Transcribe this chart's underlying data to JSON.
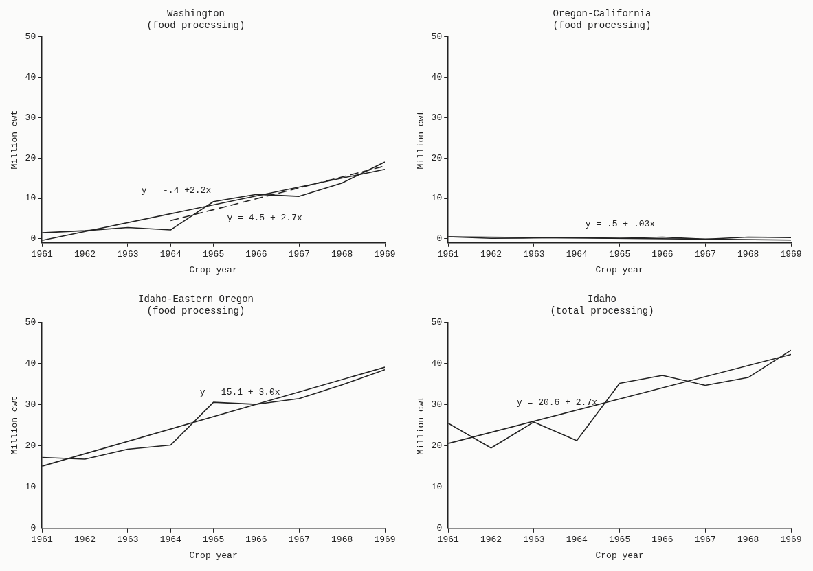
{
  "chart_data": [
    {
      "type": "line",
      "title": "Washington",
      "subtitle": "(food processing)",
      "xlabel": "Crop year",
      "ylabel": "Million cwt",
      "x": [
        1961,
        1962,
        1963,
        1964,
        1965,
        1966,
        1967,
        1968,
        1969
      ],
      "series": [
        {
          "color": "#222222",
          "values": [
            1.5,
            2,
            2.8,
            2.2,
            9.2,
            11,
            10.5,
            13.8,
            19
          ]
        },
        {
          "color": "#222222",
          "x": [
            1961,
            1969
          ],
          "values": [
            -0.4,
            17.2
          ]
        },
        {
          "color": "#222222",
          "x": [
            1964,
            1969
          ],
          "values": [
            4.5,
            18
          ],
          "line_style": "dashed"
        }
      ],
      "xlim": [
        1961,
        1969
      ],
      "xticks": [
        1961,
        1962,
        1963,
        1964,
        1965,
        1966,
        1967,
        1968,
        1969
      ],
      "ylim": [
        -1,
        50
      ],
      "yticks": [
        0,
        10,
        20,
        30,
        40,
        50
      ],
      "annotations": [
        "y = -.4 +2.2x",
        "y = 4.5 + 2.7x"
      ],
      "marker": "none",
      "line_style": "solid",
      "grid": false,
      "legend": false
    },
    {
      "type": "line",
      "title": "Oregon-California",
      "subtitle": "(food processing)",
      "xlabel": "Crop year",
      "ylabel": "Million cwt",
      "x": [
        1961,
        1962,
        1963,
        1964,
        1965,
        1966,
        1967,
        1968,
        1969
      ],
      "series": [
        {
          "color": "#222222",
          "values": [
            0.5,
            0.1,
            0.2,
            0.3,
            0.1,
            0.4,
            -0.1,
            0.4,
            0.3
          ]
        },
        {
          "color": "#222222",
          "x": [
            1961,
            1969
          ],
          "values": [
            0.5,
            -0.3
          ]
        }
      ],
      "xlim": [
        1961,
        1969
      ],
      "xticks": [
        1961,
        1962,
        1963,
        1964,
        1965,
        1966,
        1967,
        1968,
        1969
      ],
      "ylim": [
        -1,
        50
      ],
      "yticks": [
        0,
        10,
        20,
        30,
        40,
        50
      ],
      "annotations": [
        "y = .5 + .03x"
      ],
      "marker": "none",
      "line_style": "solid",
      "grid": false,
      "legend": false
    },
    {
      "type": "line",
      "title": "Idaho-Eastern Oregon",
      "subtitle": "(food processing)",
      "xlabel": "Crop year",
      "ylabel": "Million cwt",
      "x": [
        1961,
        1962,
        1963,
        1964,
        1965,
        1966,
        1967,
        1968,
        1969
      ],
      "series": [
        {
          "color": "#222222",
          "values": [
            17.2,
            16.8,
            19.2,
            20.2,
            30.6,
            30.1,
            31.5,
            34.8,
            38.5
          ]
        },
        {
          "color": "#222222",
          "x": [
            1961,
            1969
          ],
          "values": [
            15.1,
            39.1
          ]
        }
      ],
      "xlim": [
        1961,
        1969
      ],
      "xticks": [
        1961,
        1962,
        1963,
        1964,
        1965,
        1966,
        1967,
        1968,
        1969
      ],
      "ylim": [
        0,
        50
      ],
      "yticks": [
        0,
        10,
        20,
        30,
        40,
        50
      ],
      "annotations": [
        "y = 15.1 + 3.0x"
      ],
      "marker": "none",
      "line_style": "solid",
      "grid": false,
      "legend": false
    },
    {
      "type": "line",
      "title": "Idaho",
      "subtitle": "(total processing)",
      "xlabel": "Crop year",
      "ylabel": "Million cwt",
      "x": [
        1961,
        1962,
        1963,
        1964,
        1965,
        1966,
        1967,
        1968,
        1969
      ],
      "series": [
        {
          "color": "#222222",
          "values": [
            25.5,
            19.5,
            25.8,
            21.3,
            35.2,
            37.1,
            34.7,
            36.6,
            43.2
          ]
        },
        {
          "color": "#222222",
          "x": [
            1961,
            1969
          ],
          "values": [
            20.6,
            42.2
          ]
        }
      ],
      "xlim": [
        1961,
        1969
      ],
      "xticks": [
        1961,
        1962,
        1963,
        1964,
        1965,
        1966,
        1967,
        1968,
        1969
      ],
      "ylim": [
        0,
        50
      ],
      "yticks": [
        0,
        10,
        20,
        30,
        40,
        50
      ],
      "annotations": [
        "y = 20.6 + 2.7x"
      ],
      "marker": "none",
      "line_style": "solid",
      "grid": false,
      "legend": false
    }
  ]
}
